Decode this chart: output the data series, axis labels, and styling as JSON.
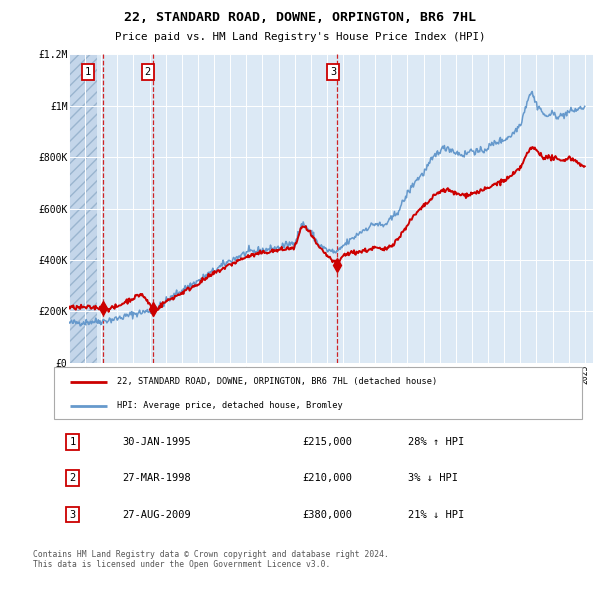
{
  "title": "22, STANDARD ROAD, DOWNE, ORPINGTON, BR6 7HL",
  "subtitle": "Price paid vs. HM Land Registry's House Price Index (HPI)",
  "legend_line1": "22, STANDARD ROAD, DOWNE, ORPINGTON, BR6 7HL (detached house)",
  "legend_line2": "HPI: Average price, detached house, Bromley",
  "sale_years": [
    1995.08,
    1998.23,
    2009.65
  ],
  "sale_prices": [
    215000,
    210000,
    380000
  ],
  "sale_labels": [
    "1",
    "2",
    "3"
  ],
  "sale_dates": [
    "30-JAN-1995",
    "27-MAR-1998",
    "27-AUG-2009"
  ],
  "sale_hpi_pct": [
    "28% ↑ HPI",
    "3% ↓ HPI",
    "21% ↓ HPI"
  ],
  "sale_prices_str": [
    "£215,000",
    "£210,000",
    "£380,000"
  ],
  "footer": "Contains HM Land Registry data © Crown copyright and database right 2024.\nThis data is licensed under the Open Government Licence v3.0.",
  "ylim": [
    0,
    1200000
  ],
  "xlim": [
    1993.0,
    2025.5
  ],
  "background_color": "#ffffff",
  "plot_bg_color": "#dce9f5",
  "grid_color": "#ffffff",
  "red_line_color": "#cc0000",
  "blue_line_color": "#6699cc",
  "dashed_line_color": "#cc0000",
  "marker_color": "#cc0000",
  "label_box_edge": "#cc0000",
  "hatch_end": 1994.75,
  "hpi_key_points": [
    [
      1993.0,
      155000
    ],
    [
      1994.0,
      158000
    ],
    [
      1995.08,
      163000
    ],
    [
      1996.0,
      172000
    ],
    [
      1997.0,
      190000
    ],
    [
      1998.23,
      205000
    ],
    [
      1999.0,
      238000
    ],
    [
      2000.0,
      282000
    ],
    [
      2001.0,
      318000
    ],
    [
      2002.0,
      358000
    ],
    [
      2003.0,
      398000
    ],
    [
      2004.0,
      428000
    ],
    [
      2005.0,
      438000
    ],
    [
      2006.0,
      448000
    ],
    [
      2007.0,
      468000
    ],
    [
      2007.5,
      542000
    ],
    [
      2008.0,
      510000
    ],
    [
      2008.5,
      460000
    ],
    [
      2009.0,
      438000
    ],
    [
      2009.65,
      428000
    ],
    [
      2010.0,
      455000
    ],
    [
      2010.5,
      478000
    ],
    [
      2011.0,
      505000
    ],
    [
      2011.5,
      525000
    ],
    [
      2012.0,
      542000
    ],
    [
      2012.5,
      532000
    ],
    [
      2013.0,
      558000
    ],
    [
      2013.5,
      598000
    ],
    [
      2014.0,
      658000
    ],
    [
      2014.5,
      708000
    ],
    [
      2015.0,
      738000
    ],
    [
      2015.5,
      788000
    ],
    [
      2016.0,
      828000
    ],
    [
      2016.5,
      838000
    ],
    [
      2017.0,
      818000
    ],
    [
      2017.5,
      808000
    ],
    [
      2018.0,
      828000
    ],
    [
      2018.5,
      818000
    ],
    [
      2019.0,
      838000
    ],
    [
      2019.5,
      858000
    ],
    [
      2020.0,
      868000
    ],
    [
      2020.5,
      888000
    ],
    [
      2021.0,
      928000
    ],
    [
      2021.3,
      988000
    ],
    [
      2021.5,
      1035000
    ],
    [
      2021.7,
      1055000
    ],
    [
      2022.0,
      1005000
    ],
    [
      2022.3,
      985000
    ],
    [
      2022.5,
      958000
    ],
    [
      2023.0,
      968000
    ],
    [
      2023.5,
      958000
    ],
    [
      2024.0,
      975000
    ],
    [
      2024.5,
      985000
    ],
    [
      2025.0,
      995000
    ]
  ],
  "prop_key_points": [
    [
      1993.0,
      215000
    ],
    [
      1994.5,
      215000
    ],
    [
      1995.08,
      215000
    ],
    [
      1995.5,
      210000
    ],
    [
      1996.0,
      218000
    ],
    [
      1996.5,
      238000
    ],
    [
      1997.0,
      252000
    ],
    [
      1997.5,
      268000
    ],
    [
      1998.23,
      210000
    ],
    [
      1998.5,
      212000
    ],
    [
      1999.0,
      238000
    ],
    [
      2000.0,
      272000
    ],
    [
      2001.0,
      308000
    ],
    [
      2002.0,
      348000
    ],
    [
      2003.0,
      382000
    ],
    [
      2004.0,
      412000
    ],
    [
      2005.0,
      428000
    ],
    [
      2006.0,
      438000
    ],
    [
      2007.0,
      448000
    ],
    [
      2007.5,
      538000
    ],
    [
      2008.0,
      500000
    ],
    [
      2008.5,
      448000
    ],
    [
      2009.0,
      418000
    ],
    [
      2009.65,
      380000
    ],
    [
      2010.0,
      418000
    ],
    [
      2010.5,
      428000
    ],
    [
      2011.0,
      432000
    ],
    [
      2011.5,
      438000
    ],
    [
      2012.0,
      448000
    ],
    [
      2012.5,
      438000
    ],
    [
      2013.0,
      458000
    ],
    [
      2013.5,
      488000
    ],
    [
      2014.0,
      538000
    ],
    [
      2014.5,
      578000
    ],
    [
      2015.0,
      608000
    ],
    [
      2015.5,
      638000
    ],
    [
      2016.0,
      668000
    ],
    [
      2016.5,
      672000
    ],
    [
      2017.0,
      658000
    ],
    [
      2017.5,
      652000
    ],
    [
      2018.0,
      658000
    ],
    [
      2018.5,
      668000
    ],
    [
      2019.0,
      678000
    ],
    [
      2019.5,
      698000
    ],
    [
      2020.0,
      708000
    ],
    [
      2020.5,
      728000
    ],
    [
      2021.0,
      758000
    ],
    [
      2021.3,
      798000
    ],
    [
      2021.5,
      818000
    ],
    [
      2021.7,
      838000
    ],
    [
      2022.0,
      828000
    ],
    [
      2022.3,
      808000
    ],
    [
      2022.5,
      798000
    ],
    [
      2023.0,
      798000
    ],
    [
      2023.5,
      785000
    ],
    [
      2024.0,
      798000
    ],
    [
      2024.5,
      785000
    ],
    [
      2025.0,
      758000
    ]
  ]
}
